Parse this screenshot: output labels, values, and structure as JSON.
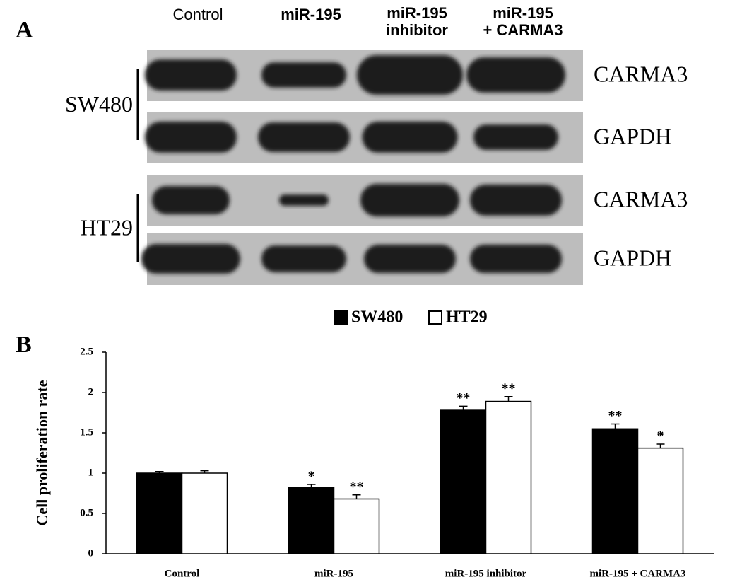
{
  "panel_a": {
    "label": "A",
    "columns": [
      [
        "Control"
      ],
      [
        "miR-195"
      ],
      [
        "miR-195",
        "inhibitor"
      ],
      [
        "miR-195",
        "+ CARMA3"
      ]
    ],
    "cell_lines": [
      {
        "name": "SW480",
        "rows": [
          "CARMA3",
          "GAPDH"
        ]
      },
      {
        "name": "HT29",
        "rows": [
          "CARMA3",
          "GAPDH"
        ]
      }
    ]
  },
  "chart_data": {
    "type": "bar",
    "label": "B",
    "y_label": "Cell proliferation rate",
    "categories": [
      "Control",
      "miR-195",
      "miR-195 inhibitor",
      "miR-195 + CARMA3"
    ],
    "series": [
      {
        "name": "SW480",
        "color": "#000000",
        "values": [
          1.0,
          0.82,
          1.78,
          1.55
        ],
        "errors": [
          0.02,
          0.04,
          0.05,
          0.06
        ],
        "annotations": [
          null,
          "*",
          "**",
          "**"
        ]
      },
      {
        "name": "HT29",
        "color": "#ffffff",
        "values": [
          1.0,
          0.68,
          1.89,
          1.31
        ],
        "errors": [
          0.03,
          0.05,
          0.06,
          0.05
        ],
        "annotations": [
          null,
          "**",
          "**",
          "*"
        ]
      }
    ],
    "ylim": [
      0,
      2.5
    ],
    "yticks": [
      0,
      0.5,
      1,
      1.5,
      2,
      2.5
    ],
    "legend": "top"
  }
}
